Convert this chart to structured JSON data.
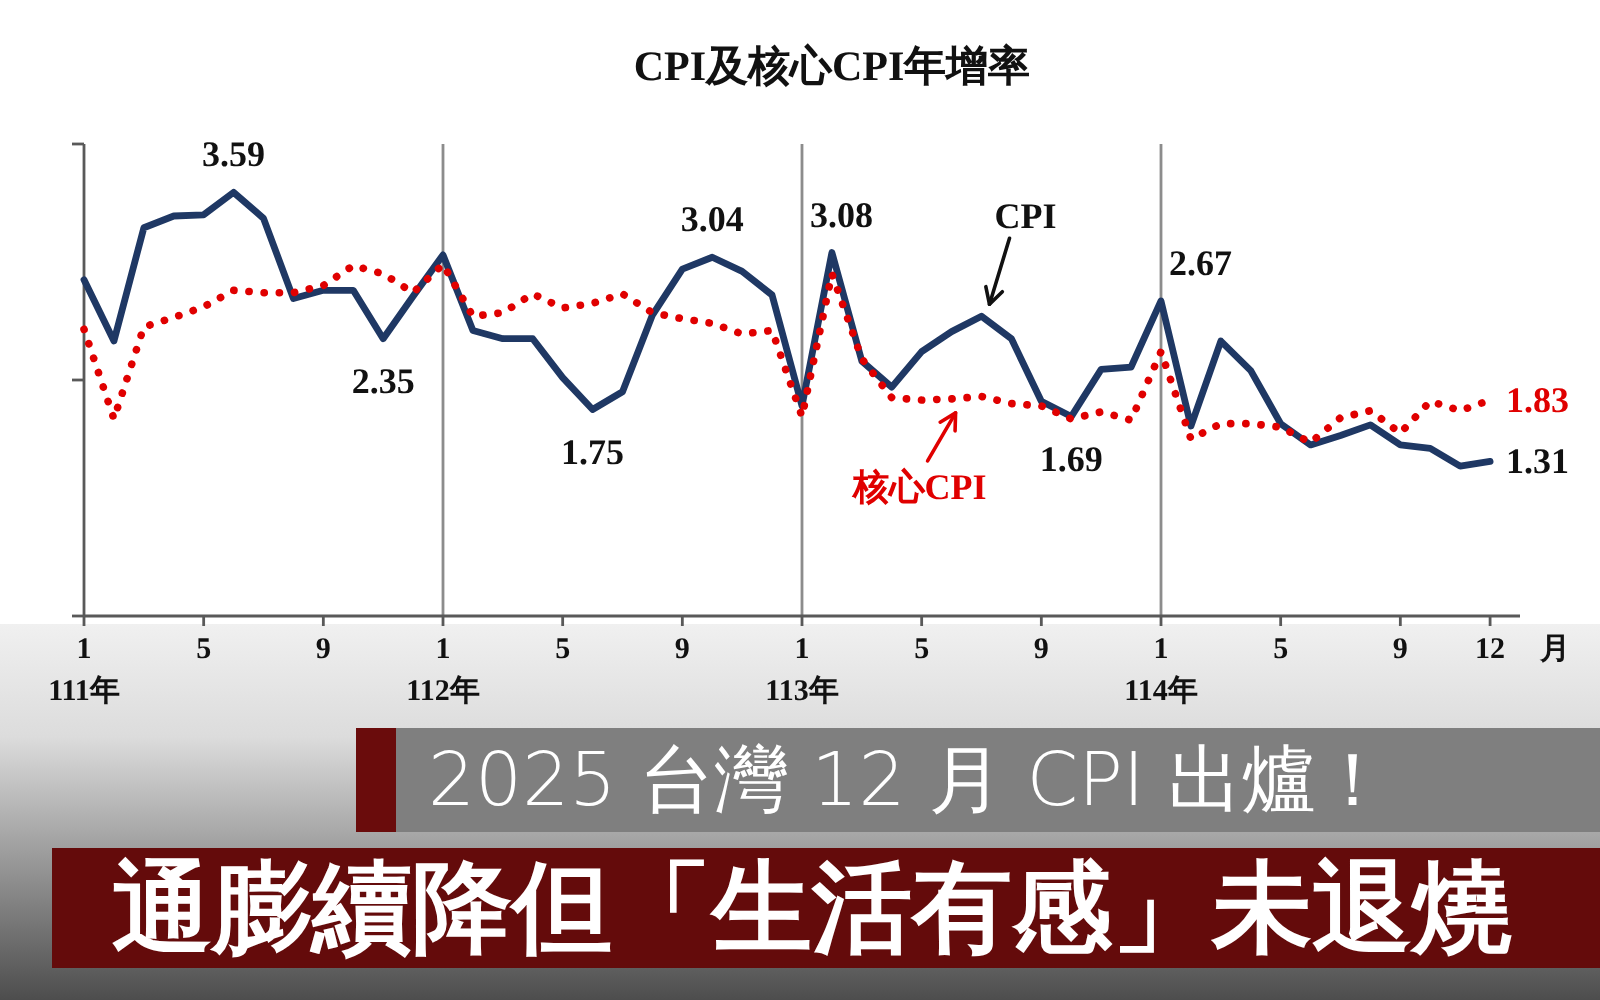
{
  "chart_data": {
    "type": "line",
    "title": "CPI及核心CPI年增率",
    "x": [
      "2022-01",
      "2022-02",
      "2022-03",
      "2022-04",
      "2022-05",
      "2022-06",
      "2022-07",
      "2022-08",
      "2022-09",
      "2022-10",
      "2022-11",
      "2022-12",
      "2023-01",
      "2023-02",
      "2023-03",
      "2023-04",
      "2023-05",
      "2023-06",
      "2023-07",
      "2023-08",
      "2023-09",
      "2023-10",
      "2023-11",
      "2023-12",
      "2024-01",
      "2024-02",
      "2024-03",
      "2024-04",
      "2024-05",
      "2024-06",
      "2024-07",
      "2024-08",
      "2024-09",
      "2024-10",
      "2024-11",
      "2024-12",
      "2025-01",
      "2025-02",
      "2025-03",
      "2025-04",
      "2025-05",
      "2025-06",
      "2025-07",
      "2025-08",
      "2025-09",
      "2025-10",
      "2025-11",
      "2025-12"
    ],
    "series": [
      {
        "name": "CPI",
        "color": "#1f3864",
        "line_style": "solid",
        "values": [
          2.85,
          2.33,
          3.29,
          3.39,
          3.4,
          3.59,
          3.37,
          2.69,
          2.76,
          2.76,
          2.35,
          2.71,
          3.06,
          2.42,
          2.35,
          2.35,
          2.02,
          1.75,
          1.9,
          2.55,
          2.94,
          3.04,
          2.92,
          2.72,
          1.78,
          3.08,
          2.16,
          1.94,
          2.24,
          2.41,
          2.54,
          2.35,
          1.82,
          1.69,
          2.09,
          2.11,
          2.67,
          1.61,
          2.33,
          2.08,
          1.63,
          1.45,
          1.53,
          1.62,
          1.45,
          1.42,
          1.27,
          1.31
        ],
        "value_labels": [
          null,
          null,
          null,
          null,
          null,
          "3.59",
          null,
          null,
          null,
          null,
          "2.35",
          null,
          null,
          null,
          null,
          null,
          null,
          "1.75",
          null,
          null,
          null,
          "3.04",
          null,
          null,
          null,
          "3.08",
          null,
          null,
          null,
          null,
          null,
          null,
          null,
          "1.69",
          null,
          null,
          "2.67",
          null,
          null,
          null,
          null,
          null,
          null,
          null,
          null,
          null,
          null,
          "1.31"
        ]
      },
      {
        "name": "核心CPI",
        "color": "#e00000",
        "line_style": "dotted",
        "values": [
          2.43,
          1.67,
          2.45,
          2.53,
          2.62,
          2.76,
          2.74,
          2.74,
          2.8,
          2.97,
          2.9,
          2.74,
          2.98,
          2.54,
          2.57,
          2.73,
          2.61,
          2.65,
          2.73,
          2.57,
          2.52,
          2.48,
          2.39,
          2.42,
          1.69,
          2.9,
          2.18,
          1.85,
          1.83,
          1.84,
          1.86,
          1.8,
          1.78,
          1.67,
          1.73,
          1.66,
          2.24,
          1.5,
          1.63,
          1.63,
          1.6,
          1.47,
          1.68,
          1.74,
          1.55,
          1.82,
          1.74,
          1.83
        ],
        "value_labels": [
          null,
          null,
          null,
          null,
          null,
          null,
          null,
          null,
          null,
          null,
          null,
          null,
          null,
          null,
          null,
          null,
          null,
          null,
          null,
          null,
          null,
          null,
          null,
          null,
          null,
          null,
          null,
          null,
          null,
          null,
          null,
          null,
          null,
          null,
          null,
          null,
          null,
          null,
          null,
          null,
          null,
          null,
          null,
          null,
          null,
          null,
          null,
          "1.83"
        ]
      }
    ],
    "xlabel": "月",
    "xlim": [
      "2022-01",
      "2026-01"
    ],
    "xticks": [
      {
        "value": "2022-01",
        "label": "1\n111年"
      },
      {
        "value": "2022-05",
        "label": "5"
      },
      {
        "value": "2022-09",
        "label": "9"
      },
      {
        "value": "2023-01",
        "label": "1\n112年"
      },
      {
        "value": "2023-05",
        "label": "5"
      },
      {
        "value": "2023-09",
        "label": "9"
      },
      {
        "value": "2024-01",
        "label": "1\n113年"
      },
      {
        "value": "2024-05",
        "label": "5"
      },
      {
        "value": "2024-09",
        "label": "9"
      },
      {
        "value": "2025-01",
        "label": "1\n114年"
      },
      {
        "value": "2025-05",
        "label": "5"
      },
      {
        "value": "2025-09",
        "label": "9"
      },
      {
        "value": "2025-12",
        "label": "12"
      }
    ],
    "ylim": [
      0,
      4
    ],
    "yticks": [
      {
        "value": 0,
        "label": null
      },
      {
        "value": 2,
        "label": null
      },
      {
        "value": 4,
        "label": null
      }
    ],
    "tick_labels": "x",
    "ref_lines": [
      {
        "axis": "x",
        "value": "2023-01",
        "color": "#8c8c8c"
      },
      {
        "axis": "x",
        "value": "2024-01",
        "color": "#8c8c8c"
      },
      {
        "axis": "x",
        "value": "2025-01",
        "color": "#8c8c8c"
      }
    ],
    "annotations": [
      "2025 台灣 12 月 CPI 出爐！",
      "通膨續降但「生活有感」未退燒"
    ]
  }
}
